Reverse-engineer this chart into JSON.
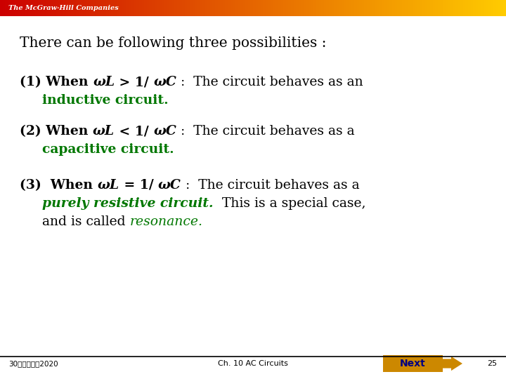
{
  "bg_color": "#ffffff",
  "header_bg": "#cc0000",
  "header_gradient_end": "#ffcc00",
  "header_text": "The McGraw‑Hill Companies",
  "title_text": "There can be following three possibilities :",
  "green_color": "#007700",
  "black_color": "#000000",
  "footer_left": "30コココココ2020",
  "footer_center": "Ch. 10 AC Circuits",
  "footer_next": "Next",
  "footer_page": "25",
  "next_bg": "#cc8800",
  "next_text_color": "#000080",
  "body_fontsize": 13.5,
  "title_fontsize": 14.5,
  "header_fontsize": 7,
  "footer_fontsize": 7.5
}
